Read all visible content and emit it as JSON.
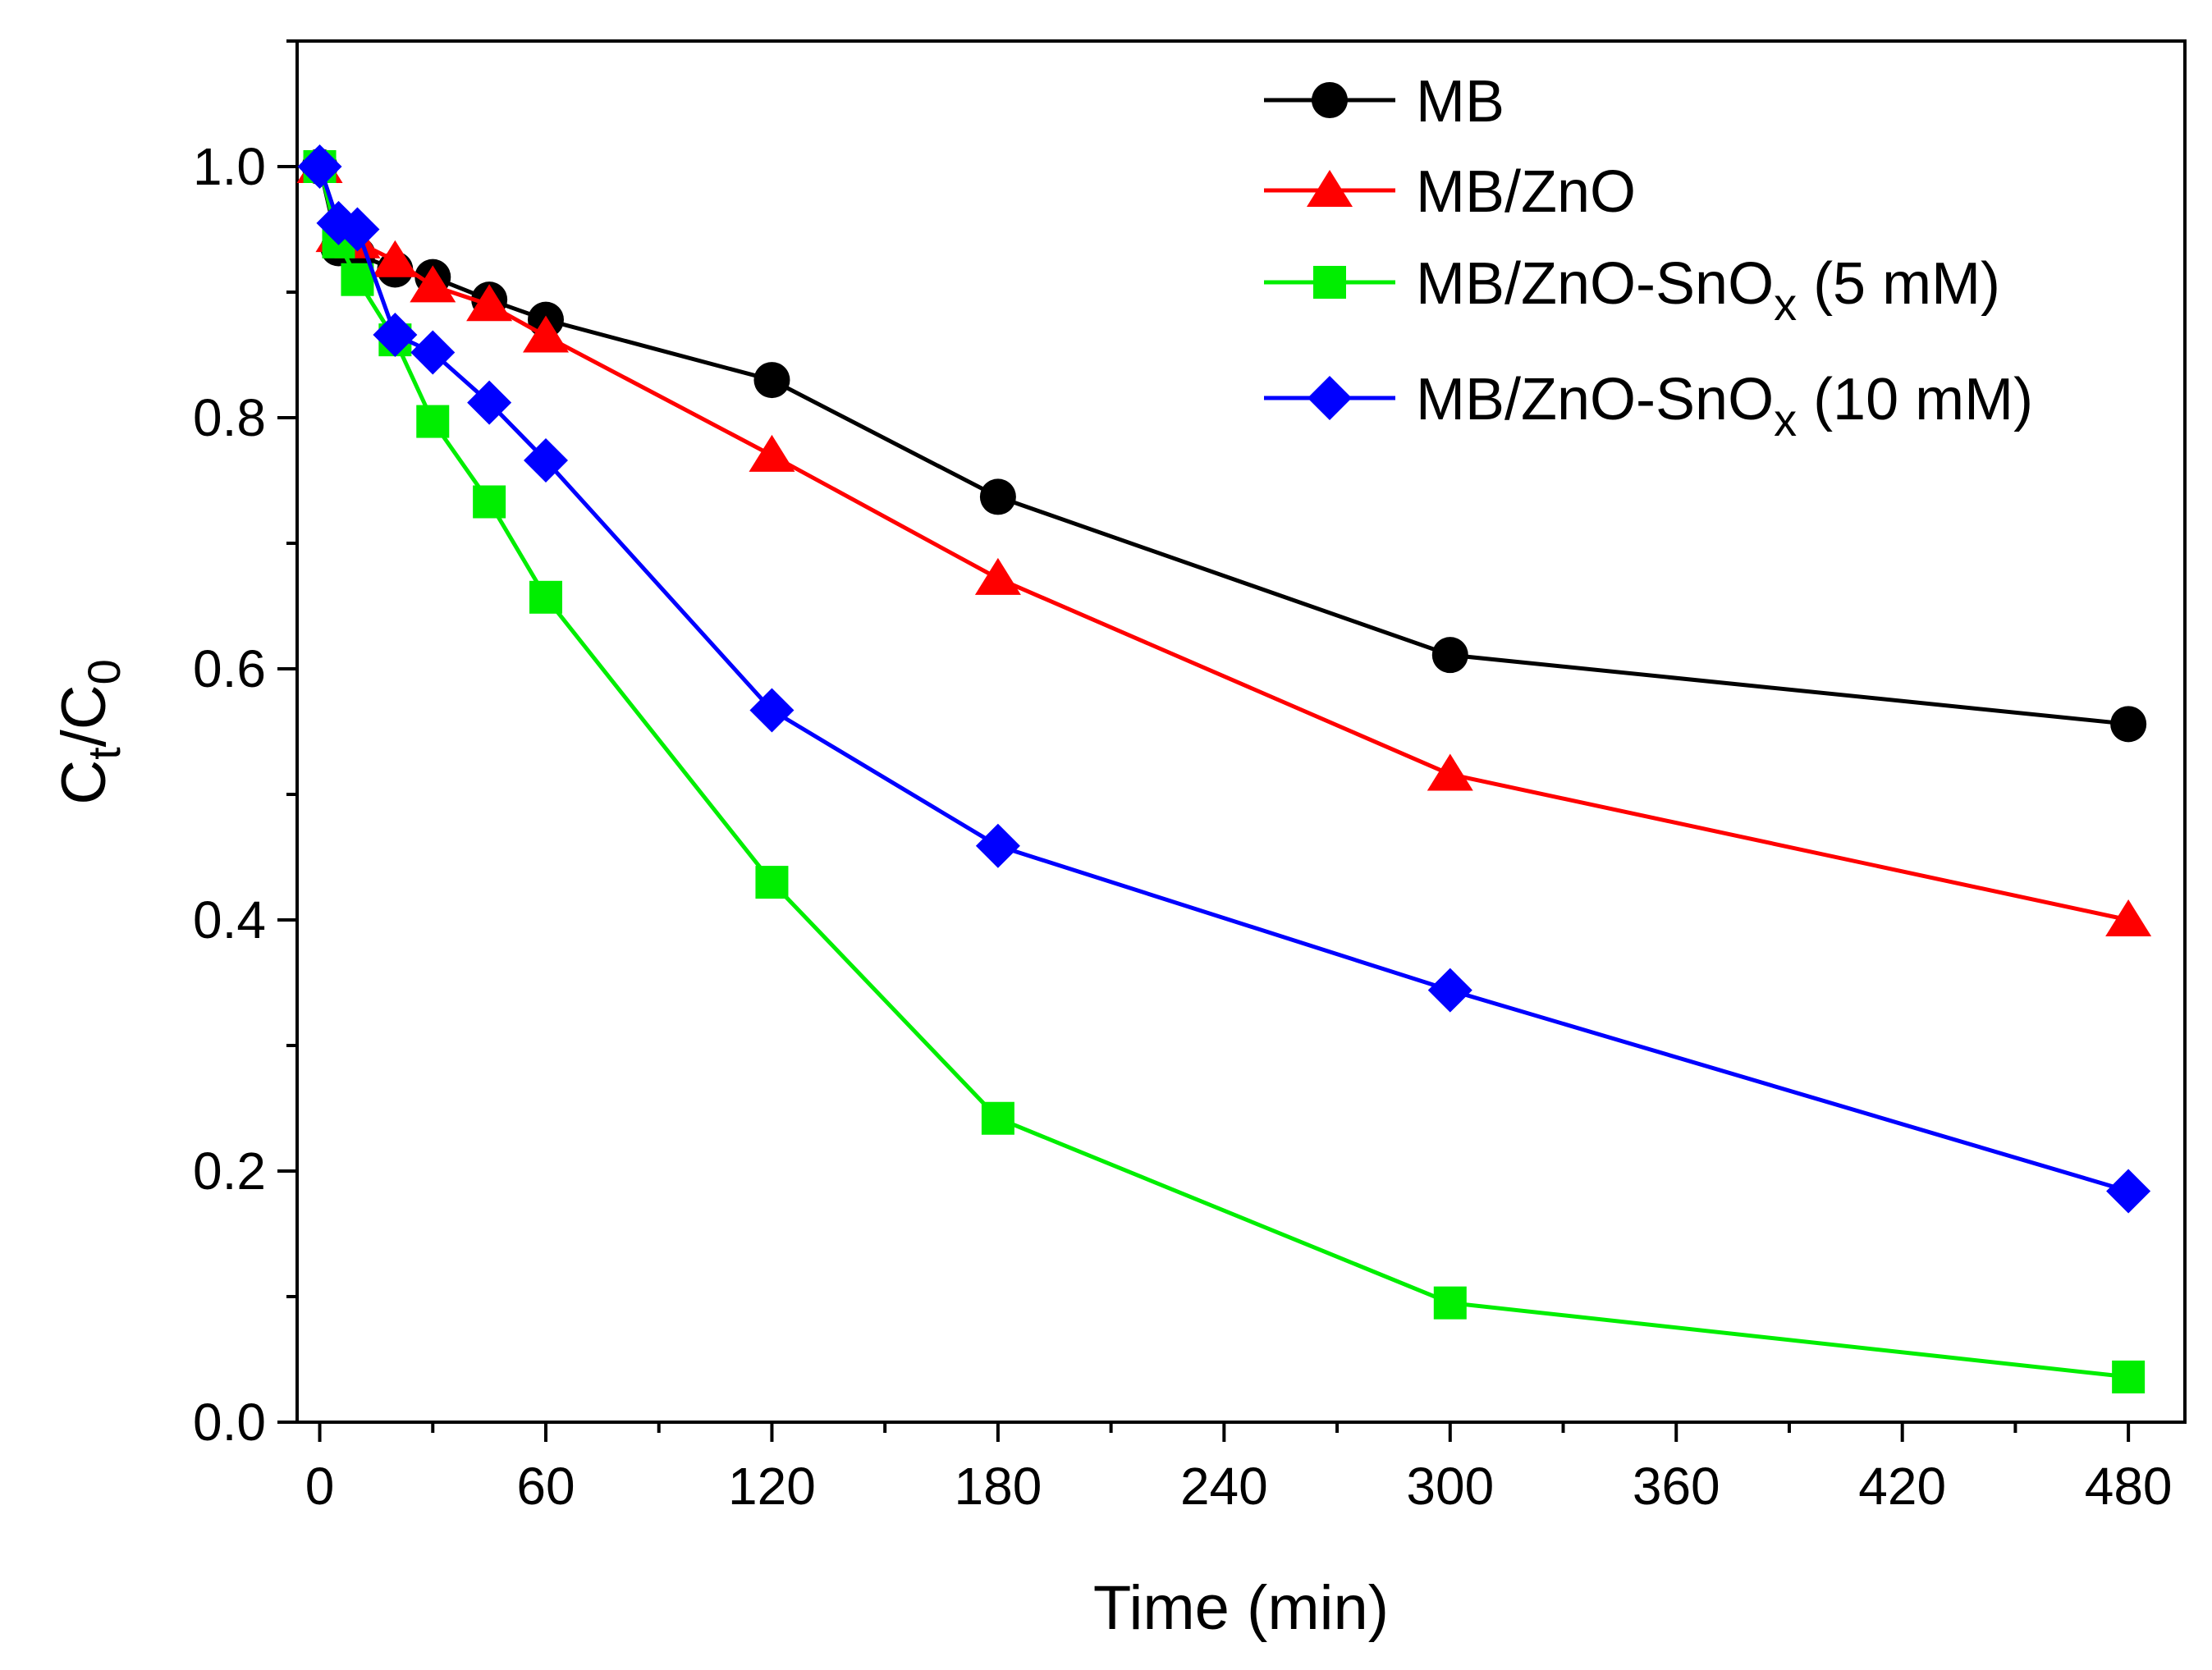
{
  "chart_data": {
    "type": "line",
    "title": "",
    "xlabel": "Time (min)",
    "ylabel_main": "C",
    "ylabel_sub1": "t",
    "ylabel_slash": "/C",
    "ylabel_sub2": "0",
    "xlim": [
      -6,
      495
    ],
    "ylim": [
      0,
      1.1
    ],
    "x_ticks": [
      0,
      60,
      120,
      180,
      240,
      300,
      360,
      420,
      480
    ],
    "x_tick_labels": [
      "0",
      "60",
      "120",
      "180",
      "240",
      "300",
      "360",
      "420",
      "480"
    ],
    "y_ticks": [
      0.0,
      0.2,
      0.4,
      0.6,
      0.8,
      1.0
    ],
    "y_tick_labels": [
      "0.0",
      "0.2",
      "0.4",
      "0.6",
      "0.8",
      "1.0"
    ],
    "legend_position": "top-right",
    "grid": false,
    "series": [
      {
        "name": "MB",
        "legend_main": "MB",
        "legend_sub": "",
        "legend_tail": "",
        "color": "#000000",
        "marker": "circle",
        "x": [
          0,
          5,
          10,
          20,
          30,
          45,
          60,
          120,
          180,
          300,
          480
        ],
        "y": [
          1.0,
          0.935,
          0.93,
          0.918,
          0.912,
          0.894,
          0.878,
          0.83,
          0.737,
          0.611,
          0.556
        ]
      },
      {
        "name": "MB/ZnO",
        "legend_main": "MB/ZnO",
        "legend_sub": "",
        "legend_tail": "",
        "color": "#ff0000",
        "marker": "triangle",
        "x": [
          0,
          5,
          10,
          20,
          30,
          45,
          60,
          120,
          180,
          300,
          480
        ],
        "y": [
          1.0,
          0.945,
          0.94,
          0.925,
          0.905,
          0.89,
          0.865,
          0.77,
          0.672,
          0.516,
          0.4
        ]
      },
      {
        "name": "MB/ZnO-SnOx (5 mM)",
        "legend_main": "MB/ZnO-SnO",
        "legend_sub": "x",
        "legend_tail": " (5 mM)",
        "color": "#00ee00",
        "marker": "square",
        "x": [
          0,
          5,
          10,
          20,
          30,
          45,
          60,
          120,
          180,
          300,
          480
        ],
        "y": [
          1.0,
          0.94,
          0.91,
          0.862,
          0.797,
          0.733,
          0.657,
          0.43,
          0.242,
          0.095,
          0.036
        ]
      },
      {
        "name": "MB/ZnO-SnOx (10 mM)",
        "legend_main": "MB/ZnO-SnO",
        "legend_sub": "x",
        "legend_tail": " (10 mM)",
        "color": "#0000ff",
        "marker": "diamond",
        "x": [
          0,
          5,
          10,
          20,
          30,
          45,
          60,
          120,
          180,
          300,
          480
        ],
        "y": [
          1.0,
          0.955,
          0.95,
          0.866,
          0.852,
          0.812,
          0.766,
          0.567,
          0.459,
          0.344,
          0.184
        ]
      }
    ]
  }
}
